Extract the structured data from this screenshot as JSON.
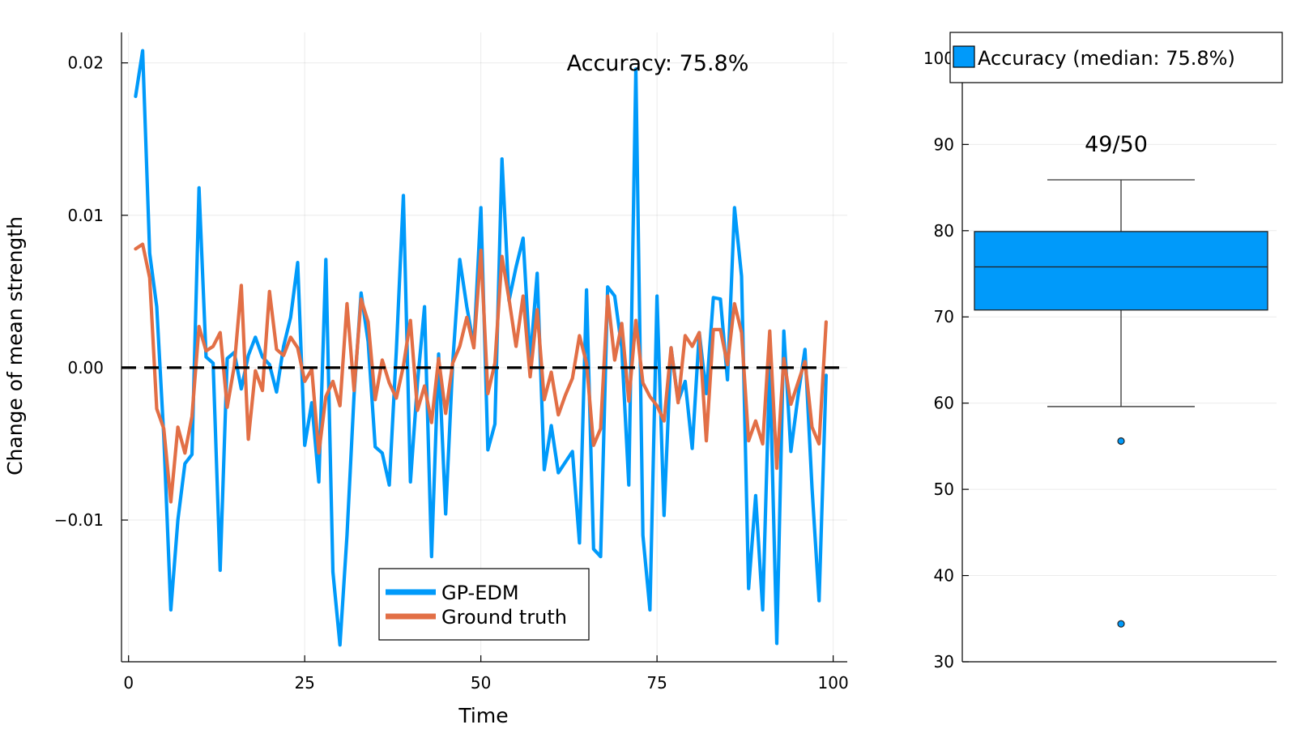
{
  "chart_data": [
    {
      "type": "line",
      "xlabel": "Time",
      "ylabel": "Change of mean strength",
      "xlim": [
        -1,
        102
      ],
      "ylim": [
        -0.0193,
        0.022
      ],
      "xticks": [
        0,
        25,
        50,
        75,
        100
      ],
      "xtick_labels": [
        "0",
        "25",
        "50",
        "75",
        "100"
      ],
      "yticks": [
        -0.01,
        0.0,
        0.01,
        0.02
      ],
      "ytick_labels": [
        "−0.01",
        "0.00",
        "0.01",
        "0.02"
      ],
      "grid": true,
      "annotation": "Accuracy: 75.8%",
      "reference_line": {
        "y": 0,
        "style": "dashed",
        "color": "#000000"
      },
      "legend_position": "bottom-center",
      "x": [
        1,
        2,
        3,
        4,
        5,
        6,
        7,
        8,
        9,
        10,
        11,
        12,
        13,
        14,
        15,
        16,
        17,
        18,
        19,
        20,
        21,
        22,
        23,
        24,
        25,
        26,
        27,
        28,
        29,
        30,
        31,
        32,
        33,
        34,
        35,
        36,
        37,
        38,
        39,
        40,
        41,
        42,
        43,
        44,
        45,
        46,
        47,
        48,
        49,
        50,
        51,
        52,
        53,
        54,
        55,
        56,
        57,
        58,
        59,
        60,
        61,
        62,
        63,
        64,
        65,
        66,
        67,
        68,
        69,
        70,
        71,
        72,
        73,
        74,
        75,
        76,
        77,
        78,
        79,
        80,
        81,
        82,
        83,
        84,
        85,
        86,
        87,
        88,
        89,
        90,
        91,
        92,
        93,
        94,
        95,
        96,
        97,
        98,
        99
      ],
      "series": [
        {
          "name": "GP-EDM",
          "color": "#009AFA",
          "values": [
            0.0178,
            0.0208,
            0.0075,
            0.004,
            -0.0045,
            -0.0159,
            -0.01,
            -0.0063,
            -0.0057,
            0.0118,
            0.0007,
            0.0003,
            -0.0133,
            0.0006,
            0.001,
            -0.0014,
            0.0008,
            0.002,
            0.0007,
            0.0002,
            -0.0016,
            0.0014,
            0.0033,
            0.0069,
            -0.0051,
            -0.0023,
            -0.0075,
            0.0071,
            -0.0134,
            -0.0182,
            -0.011,
            -0.0018,
            0.0049,
            0.0017,
            -0.0052,
            -0.0056,
            -0.0077,
            0.0011,
            0.0113,
            -0.0075,
            -0.001,
            0.004,
            -0.0124,
            0.0009,
            -0.0096,
            0.0003,
            0.0071,
            0.004,
            0.0014,
            0.0105,
            -0.0054,
            -0.0037,
            0.0137,
            0.0044,
            0.0066,
            0.0085,
            0.0004,
            0.0062,
            -0.0067,
            -0.0038,
            -0.0069,
            -0.0062,
            -0.0055,
            -0.0115,
            0.0051,
            -0.0119,
            -0.0124,
            0.0053,
            0.0047,
            0.0013,
            -0.0077,
            0.0196,
            -0.011,
            -0.0159,
            0.0047,
            -0.0097,
            0.0013,
            -0.0022,
            -0.0009,
            -0.0053,
            0.0023,
            -0.0017,
            0.0046,
            0.0045,
            -0.0008,
            0.0105,
            0.006,
            -0.0145,
            -0.0084,
            -0.0159,
            0.0003,
            -0.0181,
            0.0024,
            -0.0055,
            -0.0019,
            0.0012,
            -0.0079,
            -0.0153,
            -0.0005
          ]
        },
        {
          "name": "Ground truth",
          "color": "#E26F46",
          "values": [
            0.0078,
            0.0081,
            0.0059,
            -0.0027,
            -0.004,
            -0.0088,
            -0.0039,
            -0.0056,
            -0.0032,
            0.0027,
            0.0011,
            0.0014,
            0.0023,
            -0.0026,
            0.0001,
            0.0054,
            -0.0047,
            -0.0002,
            -0.0015,
            0.005,
            0.0012,
            0.0008,
            0.002,
            0.0013,
            -0.0009,
            -0.0001,
            -0.0056,
            -0.0019,
            -0.0009,
            -0.0025,
            0.0042,
            -0.0015,
            0.0045,
            0.003,
            -0.0021,
            0.0005,
            -0.001,
            -0.002,
            0.0001,
            0.0031,
            -0.0028,
            -0.0012,
            -0.0036,
            0.0006,
            -0.003,
            0.0003,
            0.0014,
            0.0033,
            0.0013,
            0.0077,
            -0.0017,
            0.0003,
            0.0073,
            0.0045,
            0.0014,
            0.0047,
            -0.0006,
            0.0038,
            -0.0021,
            -0.0003,
            -0.0031,
            -0.0018,
            -0.0007,
            0.0021,
            0.0003,
            -0.0051,
            -0.004,
            0.0047,
            0.0005,
            0.0029,
            -0.0022,
            0.0031,
            -0.001,
            -0.0019,
            -0.0025,
            -0.0035,
            0.0013,
            -0.0023,
            0.0021,
            0.0014,
            0.0023,
            -0.0048,
            0.0025,
            0.0025,
            0.0002,
            0.0042,
            0.0023,
            -0.0048,
            -0.0035,
            -0.005,
            0.0024,
            -0.0066,
            0.0006,
            -0.0024,
            -0.001,
            0.0004,
            -0.0039,
            -0.005,
            0.003
          ]
        }
      ]
    },
    {
      "type": "box",
      "ylim": [
        30,
        103
      ],
      "yticks": [
        30,
        40,
        50,
        60,
        70,
        80,
        90,
        100
      ],
      "ytick_labels": [
        "30",
        "40",
        "50",
        "60",
        "70",
        "80",
        "90",
        "100"
      ],
      "grid": true,
      "annotation": "49/50",
      "legend_position": "top-right",
      "legend_label": "Accuracy (median: 75.8%)",
      "color": "#009AFA",
      "box": {
        "whisker_low": 59.6,
        "q1": 70.8,
        "median": 75.8,
        "q3": 79.9,
        "whisker_high": 85.9,
        "outliers": [
          55.6,
          34.4
        ]
      }
    }
  ]
}
